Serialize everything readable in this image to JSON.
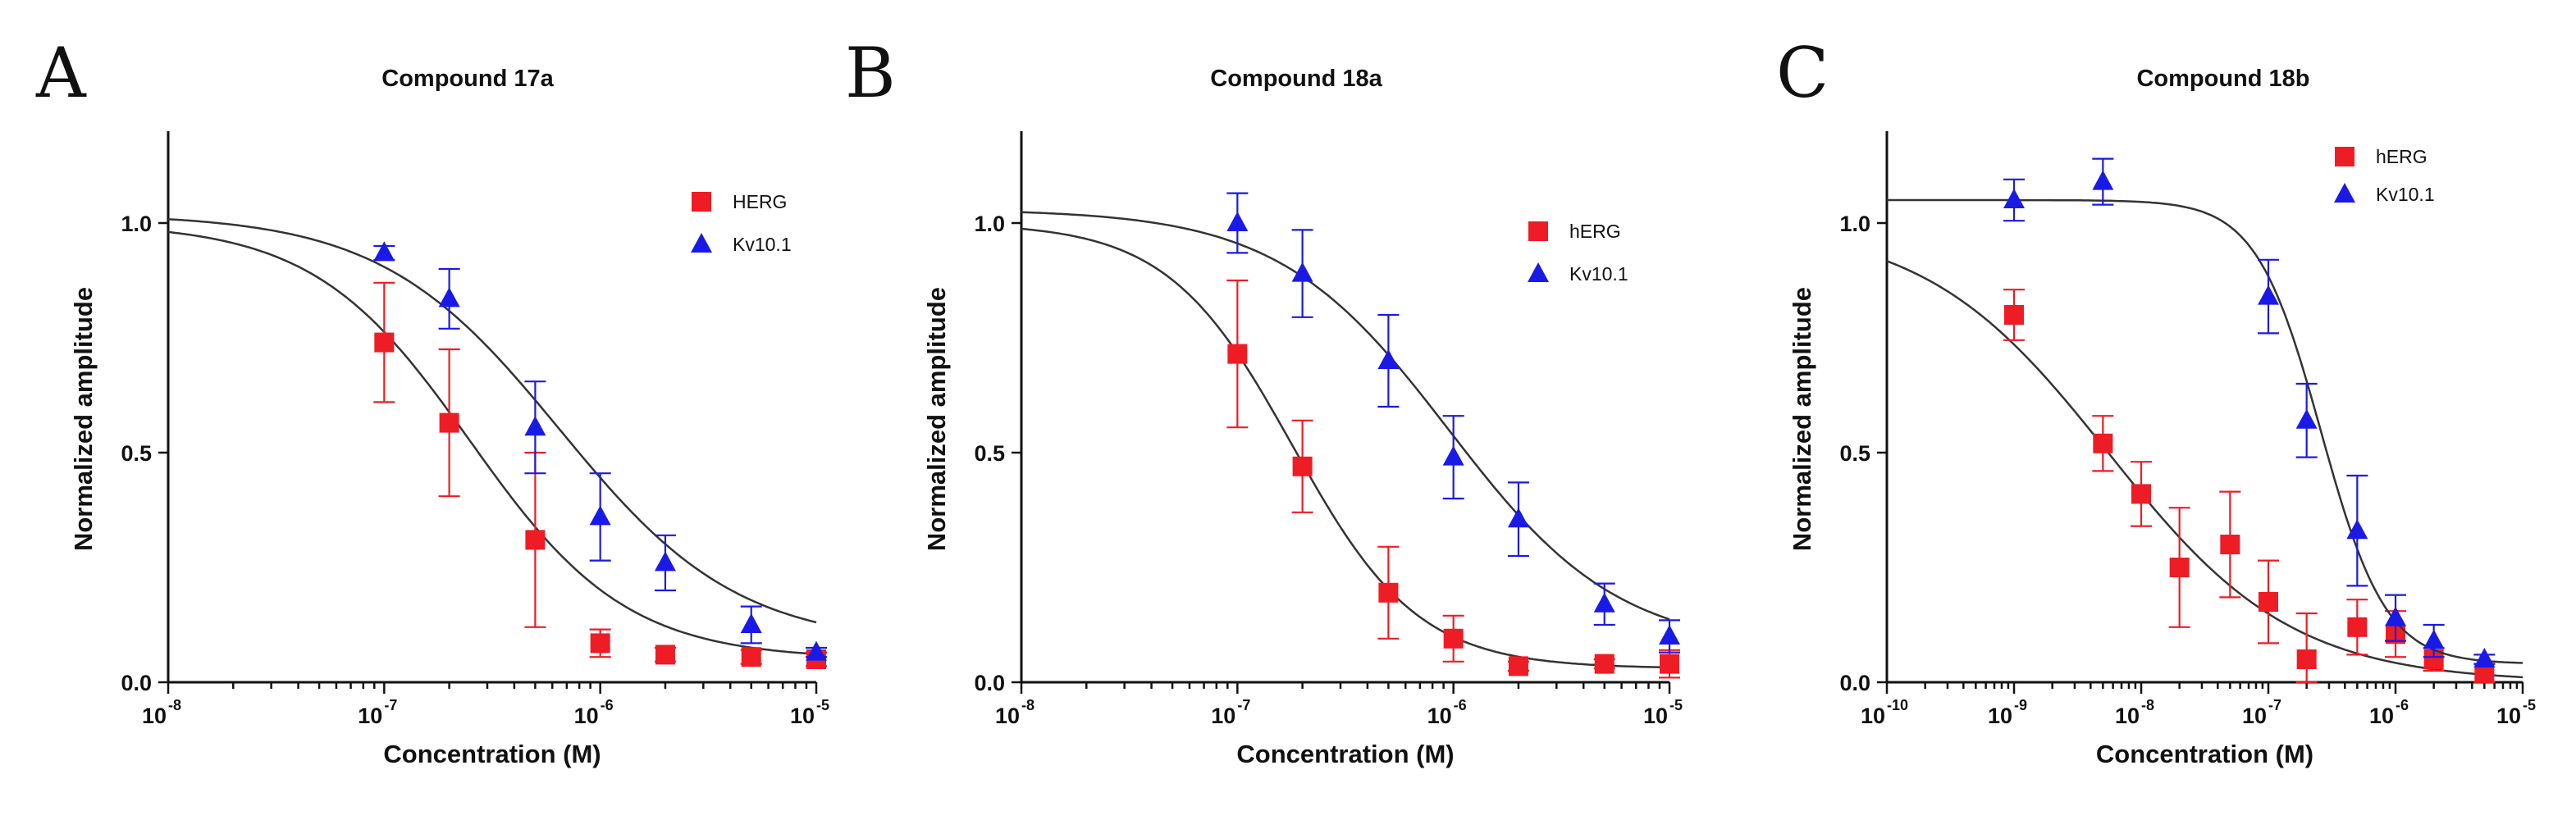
{
  "chart_data": [
    {
      "type": "scatter",
      "panel_label": "A",
      "title": "Compound 17a",
      "xlabel": "Concentration (M)",
      "ylabel": "Normalized amplitude",
      "xscale": "log",
      "xlim_exp": [
        -8,
        -5
      ],
      "ylim": [
        0,
        1.2
      ],
      "yticks": [
        "0.0",
        "0.5",
        "1.0"
      ],
      "xticks": [
        {
          "base": "10",
          "exp": "-8"
        },
        {
          "base": "10",
          "exp": "-7"
        },
        {
          "base": "10",
          "exp": "-6"
        },
        {
          "base": "10",
          "exp": "-5"
        }
      ],
      "legend_position": "top-right",
      "series": [
        {
          "name": "HERG",
          "color": "#ee1c24",
          "marker": "square",
          "x": [
            1e-07,
            2e-07,
            5e-07,
            1e-06,
            2e-06,
            5e-06,
            1e-05
          ],
          "y": [
            0.74,
            0.565,
            0.31,
            0.085,
            0.06,
            0.055,
            0.05
          ],
          "err": [
            0.13,
            0.16,
            0.19,
            0.03,
            0.015,
            0.015,
            0.015
          ],
          "fit": {
            "top": 1.0,
            "bottom": 0.05,
            "ic50": 2.5e-07,
            "hill": 1.2
          }
        },
        {
          "name": "Kv10.1",
          "color": "#1a1ae6",
          "marker": "triangle",
          "x": [
            1e-07,
            2e-07,
            5e-07,
            1e-06,
            2e-06,
            5e-06,
            1e-05
          ],
          "y": [
            0.935,
            0.835,
            0.555,
            0.36,
            0.26,
            0.125,
            0.065
          ],
          "err": [
            0.015,
            0.065,
            0.1,
            0.095,
            0.06,
            0.04,
            0.01
          ],
          "fit": {
            "top": 1.02,
            "bottom": 0.08,
            "ic50": 6.5e-07,
            "hill": 1.05
          }
        }
      ]
    },
    {
      "type": "scatter",
      "panel_label": "B",
      "title": "Compound 18a",
      "xlabel": "Concentration (M)",
      "ylabel": "Normalized amplitude",
      "xscale": "log",
      "xlim_exp": [
        -8,
        -5
      ],
      "ylim": [
        0,
        1.2
      ],
      "yticks": [
        "0.0",
        "0.5",
        "1.0"
      ],
      "xticks": [
        {
          "base": "10",
          "exp": "-8"
        },
        {
          "base": "10",
          "exp": "-7"
        },
        {
          "base": "10",
          "exp": "-6"
        },
        {
          "base": "10",
          "exp": "-5"
        }
      ],
      "legend_position": "top-right",
      "series": [
        {
          "name": "hERG",
          "color": "#ee1c24",
          "marker": "square",
          "x": [
            1e-07,
            2e-07,
            5e-07,
            1e-06,
            2e-06,
            5e-06,
            1e-05
          ],
          "y": [
            0.715,
            0.47,
            0.195,
            0.095,
            0.035,
            0.04,
            0.04
          ],
          "err": [
            0.16,
            0.1,
            0.1,
            0.05,
            0.01,
            0.01,
            0.03
          ],
          "fit": {
            "top": 1.0,
            "bottom": 0.03,
            "ic50": 1.8e-07,
            "hill": 1.5
          }
        },
        {
          "name": "Kv10.1",
          "color": "#1a1ae6",
          "marker": "triangle",
          "x": [
            1e-07,
            2e-07,
            5e-07,
            1e-06,
            2e-06,
            5e-06,
            1e-05
          ],
          "y": [
            1.0,
            0.89,
            0.7,
            0.49,
            0.355,
            0.17,
            0.1
          ],
          "err": [
            0.065,
            0.095,
            0.1,
            0.09,
            0.08,
            0.045,
            0.035
          ],
          "fit": {
            "top": 1.03,
            "bottom": 0.07,
            "ic50": 9.5e-07,
            "hill": 1.1
          }
        }
      ]
    },
    {
      "type": "scatter",
      "panel_label": "C",
      "title": "Compound 18b",
      "xlabel": "Concentration (M)",
      "ylabel": "Normalized amplitude",
      "xscale": "log",
      "xlim_exp": [
        -10,
        -5
      ],
      "ylim": [
        0,
        1.2
      ],
      "yticks": [
        "0.0",
        "0.5",
        "1.0"
      ],
      "xticks": [
        {
          "base": "10",
          "exp": "-10"
        },
        {
          "base": "10",
          "exp": "-9"
        },
        {
          "base": "10",
          "exp": "-8"
        },
        {
          "base": "10",
          "exp": "-7"
        },
        {
          "base": "10",
          "exp": "-6"
        },
        {
          "base": "10",
          "exp": "-5"
        }
      ],
      "legend_position": "top-right",
      "series": [
        {
          "name": "hERG",
          "color": "#ee1c24",
          "marker": "square",
          "x": [
            1e-09,
            5e-09,
            1e-08,
            2e-08,
            5e-08,
            1e-07,
            2e-07,
            5e-07,
            1e-06,
            2e-06,
            5e-06
          ],
          "y": [
            0.8,
            0.52,
            0.41,
            0.25,
            0.3,
            0.175,
            0.05,
            0.12,
            0.105,
            0.05,
            0.02
          ],
          "err": [
            0.055,
            0.06,
            0.07,
            0.13,
            0.115,
            0.09,
            0.1,
            0.06,
            0.05,
            0.025,
            0.02
          ],
          "fit": {
            "top": 1.0,
            "bottom": 0.0,
            "ic50": 5.5e-09,
            "hill": 0.6
          }
        },
        {
          "name": "Kv10.1",
          "color": "#1a1ae6",
          "marker": "triangle",
          "x": [
            1e-09,
            5e-09,
            1e-07,
            2e-07,
            5e-07,
            1e-06,
            2e-06,
            5e-06
          ],
          "y": [
            1.05,
            1.09,
            0.84,
            0.57,
            0.33,
            0.14,
            0.09,
            0.05
          ],
          "err": [
            0.045,
            0.05,
            0.08,
            0.08,
            0.12,
            0.05,
            0.035,
            0.01
          ],
          "fit": {
            "top": 1.05,
            "bottom": 0.04,
            "ic50": 2.6e-07,
            "hill": 1.7
          }
        }
      ]
    }
  ]
}
